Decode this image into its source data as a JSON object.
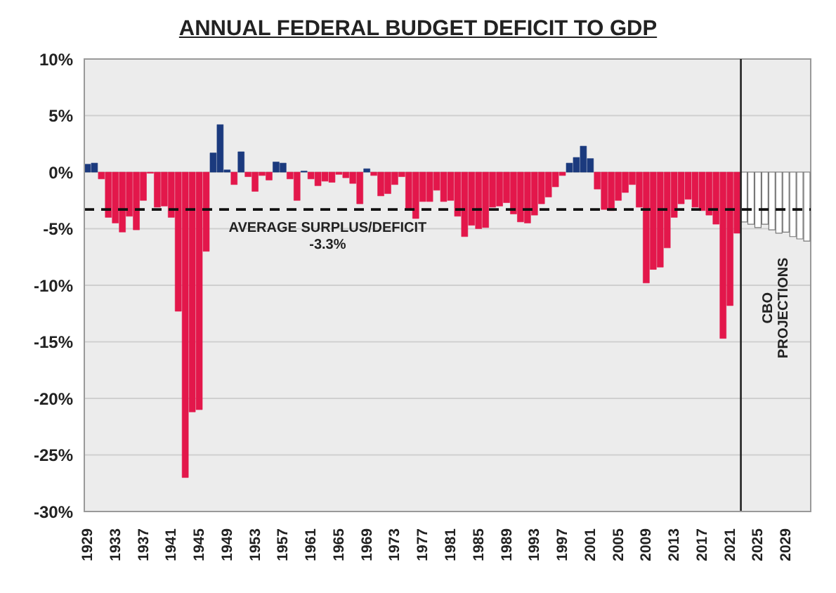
{
  "chart_data": {
    "type": "bar",
    "title": "ANNUAL FEDERAL BUDGET DEFICIT TO GDP",
    "x": [
      1929,
      1930,
      1931,
      1932,
      1933,
      1934,
      1935,
      1936,
      1937,
      1938,
      1939,
      1940,
      1941,
      1942,
      1943,
      1944,
      1945,
      1946,
      1947,
      1948,
      1949,
      1950,
      1951,
      1952,
      1953,
      1954,
      1955,
      1956,
      1957,
      1958,
      1959,
      1960,
      1961,
      1962,
      1963,
      1964,
      1965,
      1966,
      1967,
      1968,
      1969,
      1970,
      1971,
      1972,
      1973,
      1974,
      1975,
      1976,
      1977,
      1978,
      1979,
      1980,
      1981,
      1982,
      1983,
      1984,
      1985,
      1986,
      1987,
      1988,
      1989,
      1990,
      1991,
      1992,
      1993,
      1994,
      1995,
      1996,
      1997,
      1998,
      1999,
      2000,
      2001,
      2002,
      2003,
      2004,
      2005,
      2006,
      2007,
      2008,
      2009,
      2010,
      2011,
      2012,
      2013,
      2014,
      2015,
      2016,
      2017,
      2018,
      2019,
      2020,
      2021,
      2022,
      2023,
      2024,
      2025,
      2026,
      2027,
      2028,
      2029,
      2030,
      2031,
      2032
    ],
    "values": [
      0.7,
      0.8,
      -0.6,
      -4.0,
      -4.5,
      -5.3,
      -3.9,
      -5.1,
      -2.5,
      -0.1,
      -3.1,
      -3.0,
      -4.0,
      -12.3,
      -27.0,
      -21.2,
      -21.0,
      -7.0,
      1.7,
      4.2,
      0.2,
      -1.1,
      1.8,
      -0.4,
      -1.7,
      -0.3,
      -0.7,
      0.9,
      0.8,
      -0.6,
      -2.5,
      0.1,
      -0.6,
      -1.2,
      -0.8,
      -0.9,
      -0.2,
      -0.5,
      -1.0,
      -2.8,
      0.3,
      -0.3,
      -2.1,
      -1.9,
      -1.1,
      -0.4,
      -3.3,
      -4.1,
      -2.6,
      -2.6,
      -1.6,
      -2.6,
      -2.5,
      -3.9,
      -5.7,
      -4.7,
      -5.0,
      -4.9,
      -3.1,
      -3.0,
      -2.7,
      -3.7,
      -4.4,
      -4.5,
      -3.8,
      -2.8,
      -2.2,
      -1.3,
      -0.3,
      0.8,
      1.3,
      2.3,
      1.2,
      -1.5,
      -3.3,
      -3.4,
      -2.5,
      -1.8,
      -1.1,
      -3.1,
      -9.8,
      -8.6,
      -8.4,
      -6.7,
      -4.0,
      -2.8,
      -2.4,
      -3.1,
      -3.4,
      -3.8,
      -4.6,
      -14.7,
      -11.8,
      -5.4,
      -4.4,
      -4.6,
      -4.9,
      -4.6,
      -5.1,
      -5.4,
      -5.3,
      -5.7,
      -5.9,
      -6.1
    ],
    "colors": [
      "#1b3a7e",
      "#1b3a7e",
      "#e3174b",
      "#e3174b",
      "#e3174b",
      "#e3174b",
      "#e3174b",
      "#e3174b",
      "#e3174b",
      "#e3174b",
      "#e3174b",
      "#e3174b",
      "#e3174b",
      "#e3174b",
      "#e3174b",
      "#e3174b",
      "#e3174b",
      "#e3174b",
      "#1b3a7e",
      "#1b3a7e",
      "#1b3a7e",
      "#e3174b",
      "#1b3a7e",
      "#e3174b",
      "#e3174b",
      "#e3174b",
      "#e3174b",
      "#1b3a7e",
      "#1b3a7e",
      "#e3174b",
      "#e3174b",
      "#1b3a7e",
      "#e3174b",
      "#e3174b",
      "#e3174b",
      "#e3174b",
      "#e3174b",
      "#e3174b",
      "#e3174b",
      "#e3174b",
      "#1b3a7e",
      "#e3174b",
      "#e3174b",
      "#e3174b",
      "#e3174b",
      "#e3174b",
      "#e3174b",
      "#e3174b",
      "#e3174b",
      "#e3174b",
      "#e3174b",
      "#e3174b",
      "#e3174b",
      "#e3174b",
      "#e3174b",
      "#e3174b",
      "#e3174b",
      "#e3174b",
      "#e3174b",
      "#e3174b",
      "#e3174b",
      "#e3174b",
      "#e3174b",
      "#e3174b",
      "#e3174b",
      "#e3174b",
      "#e3174b",
      "#e3174b",
      "#e3174b",
      "#1b3a7e",
      "#1b3a7e",
      "#1b3a7e",
      "#1b3a7e",
      "#e3174b",
      "#e3174b",
      "#e3174b",
      "#e3174b",
      "#e3174b",
      "#e3174b",
      "#e3174b",
      "#e3174b",
      "#e3174b",
      "#e3174b",
      "#e3174b",
      "#e3174b",
      "#e3174b",
      "#e3174b",
      "#e3174b",
      "#e3174b",
      "#e3174b",
      "#e3174b",
      "#e3174b",
      "#e3174b",
      "#e3174b",
      "#ffffff",
      "#ffffff",
      "#ffffff",
      "#ffffff",
      "#ffffff",
      "#ffffff",
      "#ffffff",
      "#ffffff",
      "#ffffff",
      "#ffffff"
    ],
    "xlim": [
      1928.5,
      2032.5
    ],
    "xticks": [
      1929,
      1933,
      1937,
      1941,
      1945,
      1949,
      1953,
      1957,
      1961,
      1965,
      1969,
      1973,
      1977,
      1981,
      1985,
      1989,
      1993,
      1997,
      2001,
      2005,
      2009,
      2013,
      2017,
      2021,
      2025,
      2029
    ],
    "ylim": [
      -30,
      10
    ],
    "yticks": [
      {
        "value": 10,
        "label": "10%"
      },
      {
        "value": 5,
        "label": "5%"
      },
      {
        "value": 0,
        "label": "0%"
      },
      {
        "value": -5,
        "label": "-5%"
      },
      {
        "value": -10,
        "label": "-10%"
      },
      {
        "value": -15,
        "label": "-15%"
      },
      {
        "value": -20,
        "label": "-20%"
      },
      {
        "value": -25,
        "label": "-25%"
      },
      {
        "value": -30,
        "label": "-30%"
      }
    ],
    "grid": "y",
    "ref_lines": [
      {
        "axis": "y",
        "value": -3.3,
        "label": "AVERAGE SURPLUS/DEFICIT\n-3.3%",
        "line_style": "dashed",
        "color": "#111111"
      },
      {
        "axis": "x",
        "value": 2022.5,
        "label": "CBO\nPROJECTIONS",
        "line_style": "solid",
        "color": "#222222"
      }
    ]
  }
}
